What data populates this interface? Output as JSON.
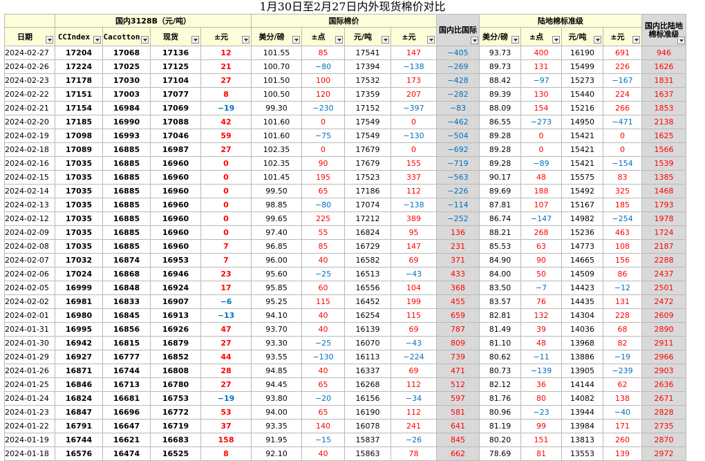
{
  "title": "1月30日至2月27日内外现货棉价对比",
  "groups": {
    "domestic": "国内3128B（元/吨）",
    "intl": "国际棉价",
    "diff_intl": "国内比国际",
    "india": "陆地棉标准级",
    "diff_india": "国内比陆地棉标准级"
  },
  "headers": {
    "date": "日期",
    "ccindex": "CCIndex",
    "cacotton": "Cacotton",
    "spot": "现货",
    "spot_chg": "±元",
    "intl_usc": "美分/磅",
    "intl_pts": "±点",
    "intl_yuan": "元/吨",
    "intl_chg": "±元",
    "india_usc": "美分/磅",
    "india_pts": "±点",
    "india_yuan": "元/吨",
    "india_chg": "±元"
  },
  "colors": {
    "up": "#ff0000",
    "down": "#0070c0",
    "header_bg": "#fdfdd9",
    "diff_bg": "#d9d9d9"
  },
  "rows": [
    [
      "2024-02-27",
      "17204",
      "17068",
      "17136",
      "12",
      "101.55",
      "85",
      "17541",
      "147",
      "−405",
      "93.73",
      "400",
      "16190",
      "691",
      "946"
    ],
    [
      "2024-02-26",
      "17224",
      "17025",
      "17125",
      "21",
      "100.70",
      "−80",
      "17394",
      "−138",
      "−269",
      "89.73",
      "131",
      "15499",
      "226",
      "1626"
    ],
    [
      "2024-02-23",
      "17178",
      "17030",
      "17104",
      "27",
      "101.50",
      "100",
      "17532",
      "173",
      "−428",
      "88.42",
      "−97",
      "15273",
      "−167",
      "1831"
    ],
    [
      "2024-02-22",
      "17151",
      "17003",
      "17077",
      "8",
      "100.50",
      "120",
      "17359",
      "207",
      "−282",
      "89.39",
      "130",
      "15440",
      "224",
      "1637"
    ],
    [
      "2024-02-21",
      "17154",
      "16984",
      "17069",
      "−19",
      "99.30",
      "−230",
      "17152",
      "−397",
      "−83",
      "88.09",
      "154",
      "15216",
      "266",
      "1853"
    ],
    [
      "2024-02-20",
      "17185",
      "16990",
      "17088",
      "42",
      "101.60",
      "0",
      "17549",
      "0",
      "−462",
      "86.55",
      "−273",
      "14950",
      "−471",
      "2138"
    ],
    [
      "2024-02-19",
      "17098",
      "16993",
      "17046",
      "59",
      "101.60",
      "−75",
      "17549",
      "−130",
      "−504",
      "89.28",
      "0",
      "15421",
      "0",
      "1625"
    ],
    [
      "2024-02-18",
      "17089",
      "16885",
      "16987",
      "27",
      "102.35",
      "0",
      "17679",
      "0",
      "−692",
      "89.28",
      "0",
      "15421",
      "0",
      "1566"
    ],
    [
      "2024-02-16",
      "17035",
      "16885",
      "16960",
      "0",
      "102.35",
      "90",
      "17679",
      "155",
      "−719",
      "89.28",
      "−89",
      "15421",
      "−154",
      "1539"
    ],
    [
      "2024-02-15",
      "17035",
      "16885",
      "16960",
      "0",
      "101.45",
      "195",
      "17523",
      "337",
      "−563",
      "90.17",
      "48",
      "15575",
      "83",
      "1385"
    ],
    [
      "2024-02-14",
      "17035",
      "16885",
      "16960",
      "0",
      "99.50",
      "65",
      "17186",
      "112",
      "−226",
      "89.69",
      "188",
      "15492",
      "325",
      "1468"
    ],
    [
      "2024-02-13",
      "17035",
      "16885",
      "16960",
      "0",
      "98.85",
      "−80",
      "17074",
      "−138",
      "−114",
      "87.81",
      "107",
      "15167",
      "185",
      "1793"
    ],
    [
      "2024-02-12",
      "17035",
      "16885",
      "16960",
      "0",
      "99.65",
      "225",
      "17212",
      "389",
      "−252",
      "86.74",
      "−147",
      "14982",
      "−254",
      "1978"
    ],
    [
      "2024-02-09",
      "17035",
      "16885",
      "16960",
      "0",
      "97.40",
      "55",
      "16824",
      "95",
      "136",
      "88.21",
      "268",
      "15236",
      "463",
      "1724"
    ],
    [
      "2024-02-08",
      "17035",
      "16885",
      "16960",
      "7",
      "96.85",
      "85",
      "16729",
      "147",
      "231",
      "85.53",
      "63",
      "14773",
      "108",
      "2187"
    ],
    [
      "2024-02-07",
      "17032",
      "16874",
      "16953",
      "7",
      "96.00",
      "40",
      "16582",
      "69",
      "371",
      "84.90",
      "90",
      "14665",
      "156",
      "2288"
    ],
    [
      "2024-02-06",
      "17024",
      "16868",
      "16946",
      "23",
      "95.60",
      "−25",
      "16513",
      "−43",
      "433",
      "84.00",
      "50",
      "14509",
      "86",
      "2437"
    ],
    [
      "2024-02-05",
      "16999",
      "16848",
      "16924",
      "17",
      "95.85",
      "60",
      "16556",
      "104",
      "368",
      "83.50",
      "−7",
      "14423",
      "−12",
      "2501"
    ],
    [
      "2024-02-02",
      "16981",
      "16833",
      "16907",
      "−6",
      "95.25",
      "115",
      "16452",
      "199",
      "455",
      "83.57",
      "76",
      "14435",
      "131",
      "2472"
    ],
    [
      "2024-02-01",
      "16980",
      "16845",
      "16913",
      "−13",
      "94.10",
      "40",
      "16254",
      "115",
      "659",
      "82.81",
      "132",
      "14304",
      "228",
      "2609"
    ],
    [
      "2024-01-31",
      "16995",
      "16856",
      "16926",
      "47",
      "93.70",
      "40",
      "16139",
      "69",
      "787",
      "81.49",
      "39",
      "14036",
      "68",
      "2890"
    ],
    [
      "2024-01-30",
      "16942",
      "16815",
      "16879",
      "27",
      "93.30",
      "−25",
      "16070",
      "−43",
      "809",
      "81.10",
      "48",
      "13968",
      "82",
      "2911"
    ],
    [
      "2024-01-29",
      "16927",
      "16777",
      "16852",
      "44",
      "93.55",
      "−130",
      "16113",
      "−224",
      "739",
      "80.62",
      "−11",
      "13886",
      "−19",
      "2966"
    ],
    [
      "2024-01-26",
      "16871",
      "16744",
      "16808",
      "28",
      "94.85",
      "40",
      "16337",
      "69",
      "471",
      "80.73",
      "−139",
      "13905",
      "−239",
      "2903"
    ],
    [
      "2024-01-25",
      "16846",
      "16713",
      "16780",
      "27",
      "94.45",
      "65",
      "16268",
      "112",
      "512",
      "82.12",
      "36",
      "14144",
      "62",
      "2636"
    ],
    [
      "2024-01-24",
      "16824",
      "16681",
      "16753",
      "−19",
      "93.80",
      "−20",
      "16156",
      "−34",
      "597",
      "81.76",
      "80",
      "14082",
      "138",
      "2671"
    ],
    [
      "2024-01-23",
      "16847",
      "16696",
      "16772",
      "53",
      "94.00",
      "65",
      "16190",
      "112",
      "581",
      "80.96",
      "−23",
      "13944",
      "−40",
      "2828"
    ],
    [
      "2024-01-22",
      "16791",
      "16647",
      "16719",
      "37",
      "93.35",
      "140",
      "16078",
      "241",
      "641",
      "81.19",
      "99",
      "13984",
      "171",
      "2735"
    ],
    [
      "2024-01-19",
      "16744",
      "16621",
      "16683",
      "158",
      "91.95",
      "−15",
      "15837",
      "−26",
      "845",
      "80.20",
      "151",
      "13813",
      "260",
      "2870"
    ],
    [
      "2024-01-18",
      "16576",
      "16474",
      "16525",
      "8",
      "92.10",
      "40",
      "15863",
      "78",
      "662",
      "78.69",
      "81",
      "13553",
      "139",
      "2972"
    ]
  ]
}
